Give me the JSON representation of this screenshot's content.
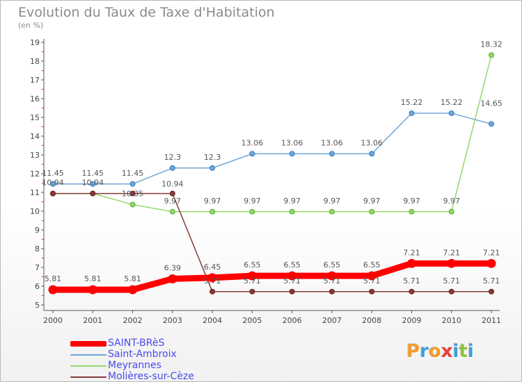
{
  "title": "Evolution du Taux de Taxe d'Habitation",
  "subtitle": "(en %)",
  "logo": {
    "text": "Proxiti",
    "colors": [
      "#f39a2b",
      "#3aa0e0",
      "#f39a2b",
      "#ec3c3c",
      "#3aa0e0",
      "#8fc43f",
      "#3aa0e0"
    ]
  },
  "chart_data": {
    "type": "line",
    "title": "Evolution du Taux de Taxe d'Habitation",
    "ylabel": "(en %)",
    "xlabel": "",
    "x": [
      "2000",
      "2001",
      "2002",
      "2003",
      "2004",
      "2005",
      "2006",
      "2007",
      "2008",
      "2009",
      "2010",
      "2011"
    ],
    "ylim": [
      5,
      19
    ],
    "yticks": [
      5,
      6,
      7,
      8,
      9,
      10,
      11,
      12,
      13,
      14,
      15,
      16,
      17,
      18,
      19
    ],
    "grid": false,
    "legend_position": "bottom-left",
    "series": [
      {
        "name": "SAINT-BRèS",
        "color": "#ff0000",
        "values": [
          5.81,
          5.81,
          5.81,
          6.39,
          6.45,
          6.55,
          6.55,
          6.55,
          6.55,
          7.21,
          7.21,
          7.21
        ]
      },
      {
        "name": "Saint-Ambroix",
        "color": "#6fa7d8",
        "values": [
          11.45,
          11.45,
          11.45,
          12.3,
          12.3,
          13.06,
          13.06,
          13.06,
          13.06,
          15.22,
          15.22,
          14.65
        ]
      },
      {
        "name": "Meyrannes",
        "color": "#93d86a",
        "values": [
          10.94,
          10.94,
          10.35,
          9.97,
          9.97,
          9.97,
          9.97,
          9.97,
          9.97,
          9.97,
          9.97,
          18.32
        ]
      },
      {
        "name": "Molières-sur-Cèze",
        "color": "#8b3a3a",
        "values": [
          10.94,
          10.94,
          10.94,
          10.94,
          5.71,
          5.71,
          5.71,
          5.71,
          5.71,
          5.71,
          5.71,
          5.71
        ]
      }
    ],
    "data_labels": [
      [
        "5.81",
        "5.81",
        "5.81",
        "6.39",
        "6.45",
        "6.55",
        "6.55",
        "6.55",
        "6.55",
        "7.21",
        "7.21",
        "7.21"
      ],
      [
        "11.45",
        "11.45",
        "11.45",
        "12.3",
        "12.3",
        "13.06",
        "13.06",
        "13.06",
        "13.06",
        "15.22",
        "15.22",
        "14.65"
      ],
      [
        "10.94",
        "10.94",
        "10.35",
        "9.97",
        "9.97",
        "9.97",
        "9.97",
        "9.97",
        "9.97",
        "9.97",
        "9.97",
        "18.32"
      ],
      [
        "",
        "",
        "",
        "10.94",
        "5.71",
        "5.71",
        "5.71",
        "5.71",
        "5.71",
        "5.71",
        "5.71",
        "5.71"
      ]
    ]
  }
}
